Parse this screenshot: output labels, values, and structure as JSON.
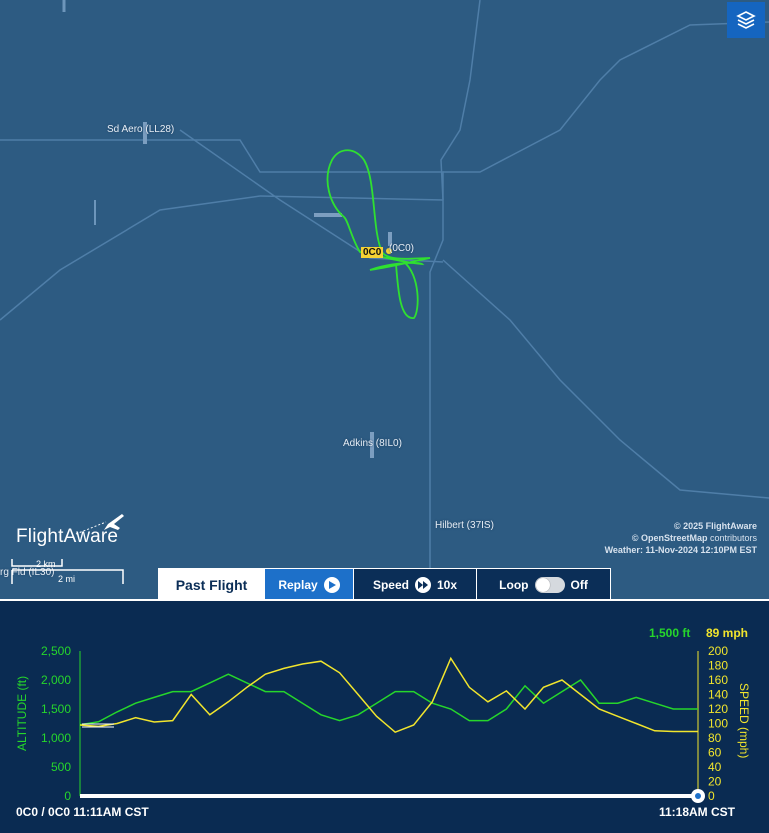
{
  "map": {
    "airports": [
      {
        "label": "Sd Aero (LL28)"
      },
      {
        "label": "Adkins (8IL0)"
      },
      {
        "label": "Hilbert (37IS)"
      },
      {
        "label": "(0C0)"
      },
      {
        "label": "rg Fld (IL30)"
      }
    ],
    "current_airport_badge": "0C0",
    "layers_icon": "layers-icon",
    "logo_text": "FlightAware",
    "attribution": {
      "line1": "© 2025 FlightAware",
      "line2_bold": "© OpenStreetMap",
      "line2_rest": " contributors",
      "line3": "Weather: 11-Nov-2024 12:10PM EST"
    },
    "scale": {
      "km": "2 km",
      "mi": "2 mi"
    }
  },
  "controls": {
    "past_flight": "Past Flight",
    "replay": "Replay",
    "speed_label": "Speed",
    "speed_value": "10x",
    "loop_label": "Loop",
    "loop_state": "Off"
  },
  "chart": {
    "altitude_readout": "1,500 ft",
    "speed_readout": "89 mph",
    "left_axis_label": "ALTITUDE (ft)",
    "right_axis_label": "SPEED (mph)",
    "left_ticks": [
      "2,500",
      "2,000",
      "1,500",
      "1,000",
      "500",
      "0"
    ],
    "right_ticks": [
      "200",
      "180",
      "160",
      "140",
      "120",
      "100",
      "80",
      "60",
      "40",
      "20",
      "0"
    ],
    "footer_left": "0C0 / 0C0 11:11AM CST",
    "footer_right": "11:18AM CST",
    "colors": {
      "altitude": "#26d62b",
      "speed": "#f1e52d"
    }
  },
  "chart_data": {
    "type": "line",
    "x_label": "",
    "x_range": [
      "11:11AM CST",
      "11:18AM CST"
    ],
    "x": [
      0,
      0.03,
      0.06,
      0.09,
      0.12,
      0.15,
      0.18,
      0.21,
      0.24,
      0.27,
      0.3,
      0.33,
      0.36,
      0.39,
      0.42,
      0.45,
      0.48,
      0.51,
      0.54,
      0.57,
      0.6,
      0.63,
      0.66,
      0.69,
      0.72,
      0.75,
      0.78,
      0.81,
      0.84,
      0.87,
      0.9,
      0.93,
      0.96,
      1.0
    ],
    "ylim_left": [
      0,
      2500
    ],
    "ylim_right": [
      0,
      200
    ],
    "series": [
      {
        "name": "ALTITUDE (ft)",
        "axis": "left",
        "values": [
          1230,
          1280,
          1450,
          1600,
          1700,
          1800,
          1800,
          1950,
          2100,
          1950,
          1800,
          1800,
          1600,
          1400,
          1300,
          1400,
          1600,
          1800,
          1800,
          1600,
          1500,
          1300,
          1300,
          1500,
          1900,
          1600,
          1800,
          2000,
          1600,
          1600,
          1700,
          1600,
          1500,
          1500
        ]
      },
      {
        "name": "SPEED (mph)",
        "axis": "right",
        "values": [
          98,
          96,
          100,
          108,
          102,
          104,
          140,
          112,
          130,
          150,
          168,
          176,
          182,
          186,
          170,
          140,
          110,
          88,
          98,
          130,
          190,
          150,
          130,
          145,
          120,
          150,
          160,
          140,
          120,
          110,
          100,
          90,
          89,
          89
        ]
      }
    ]
  }
}
